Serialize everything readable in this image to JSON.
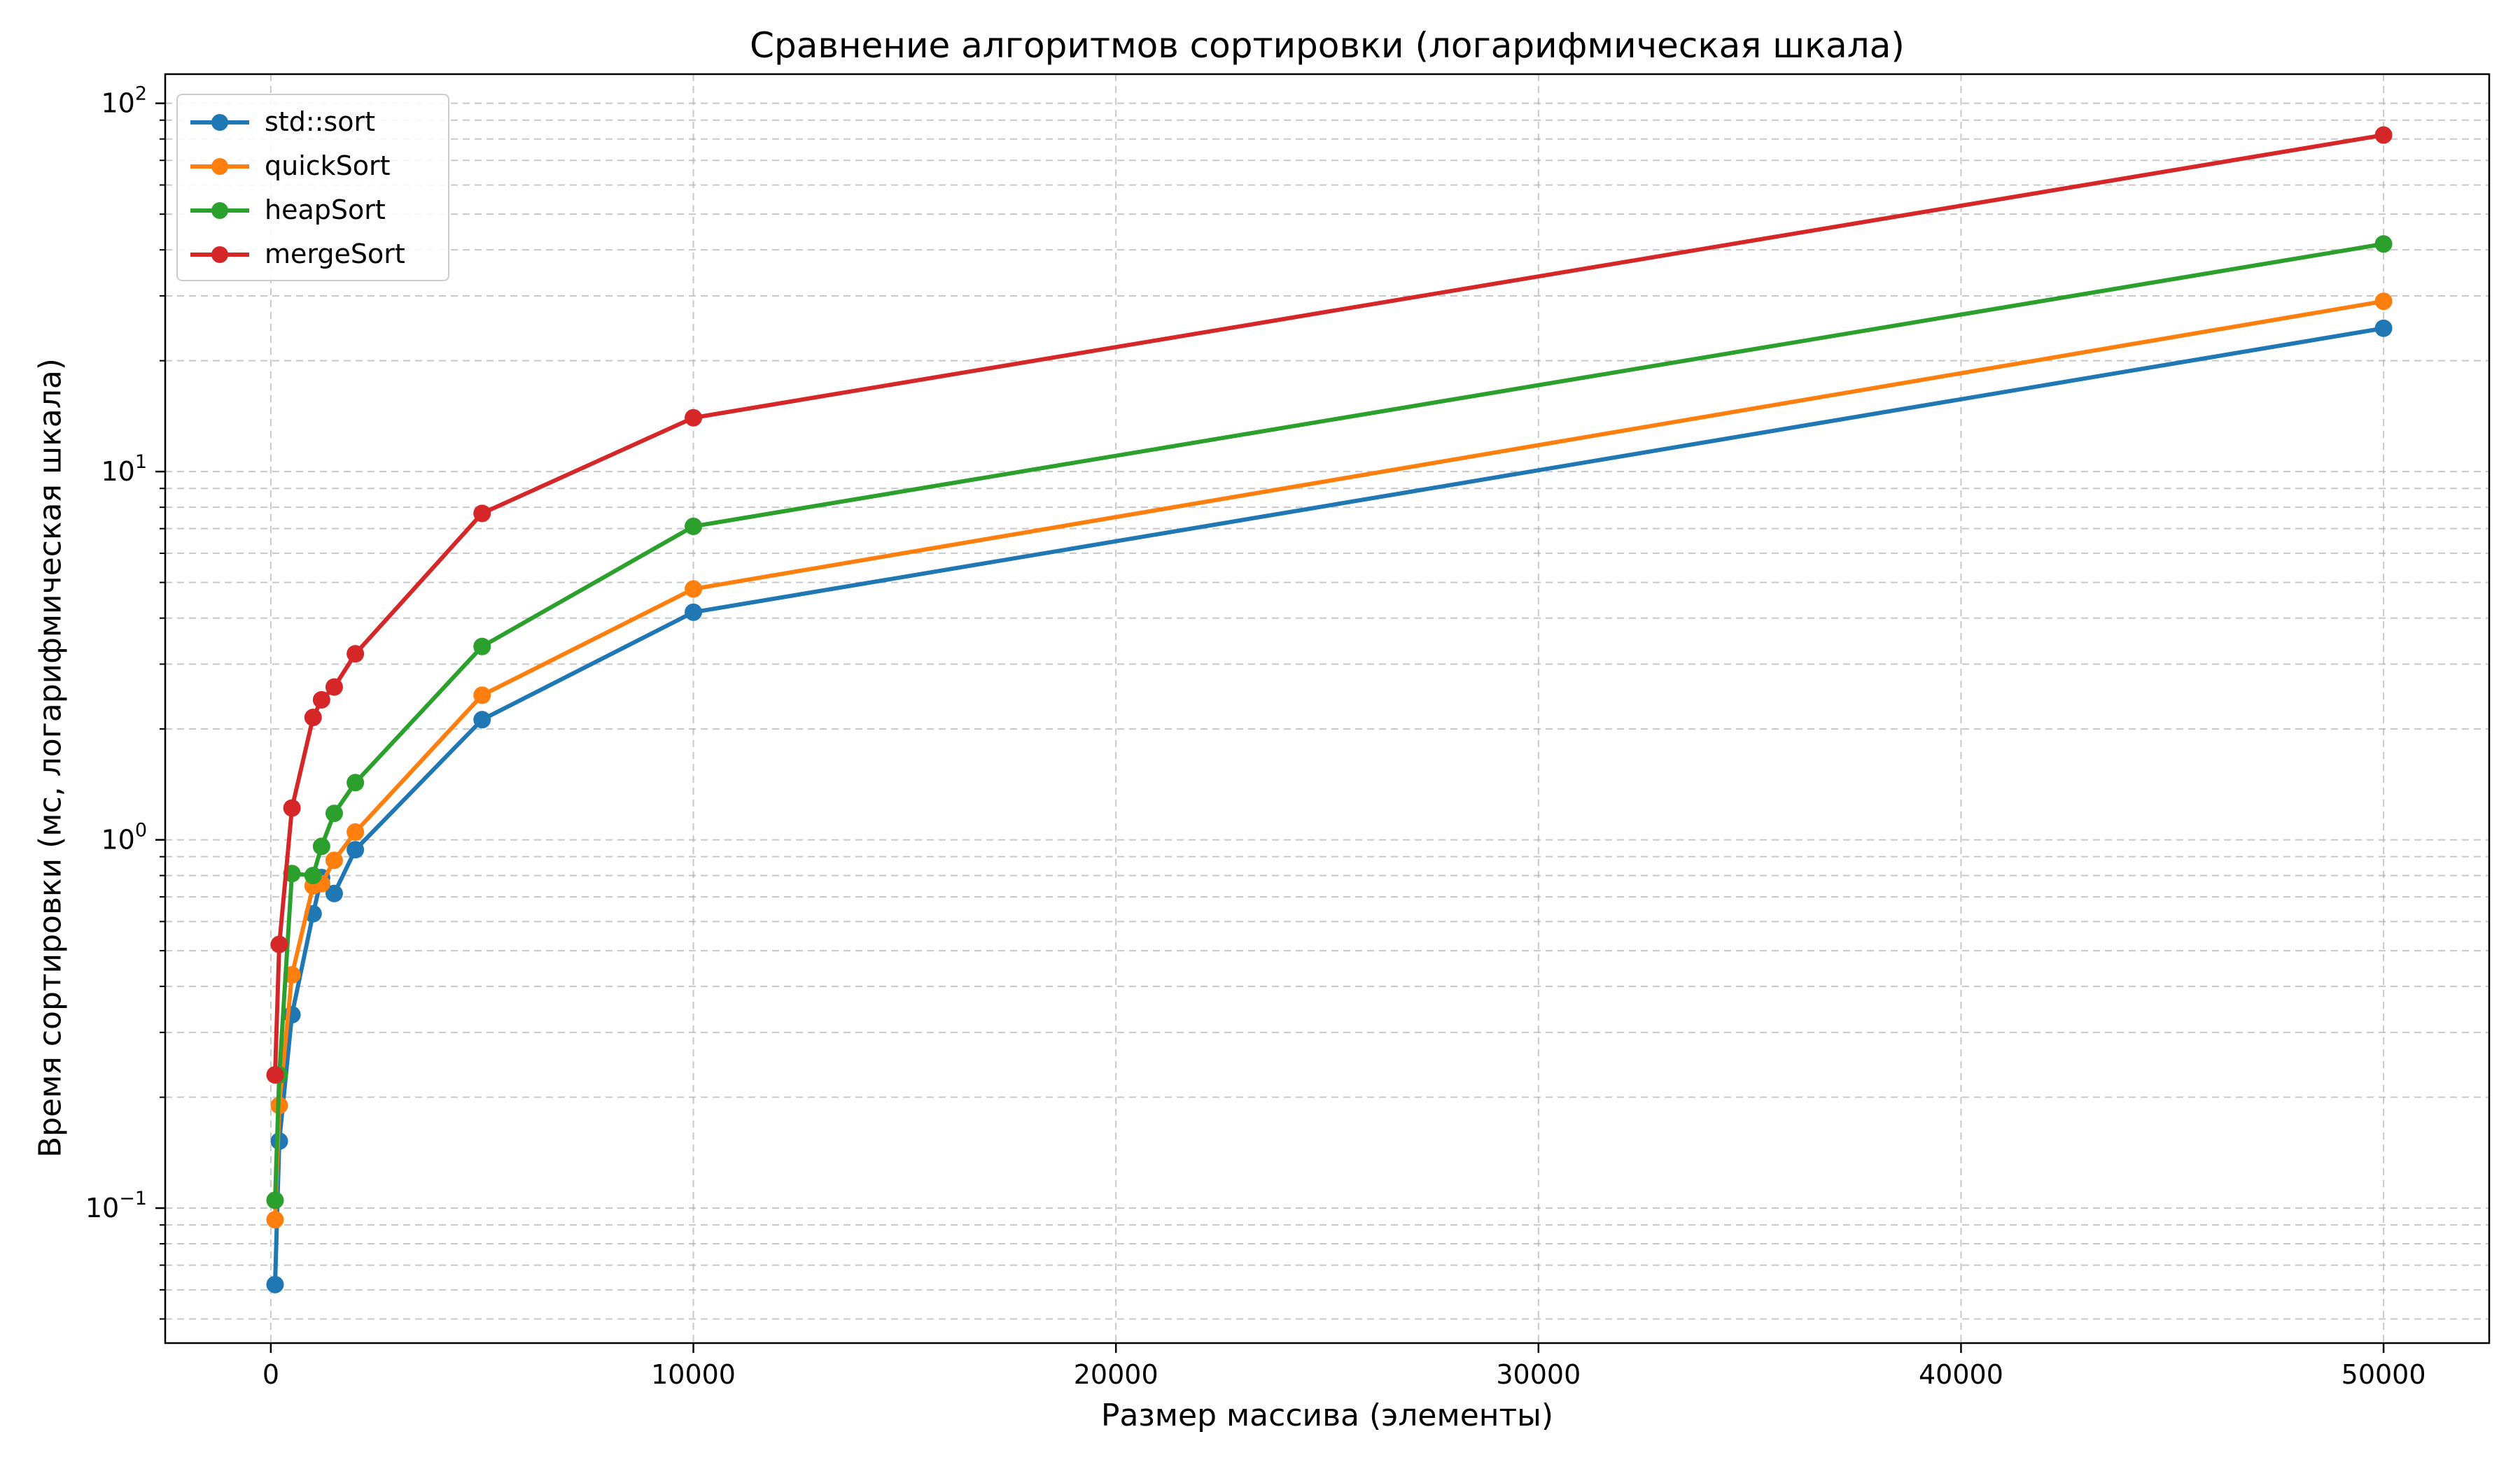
{
  "chart_data": {
    "type": "line",
    "title": "Сравнение алгоритмов сортировки (логарифмическая шкала)",
    "xlabel": "Размер массива (элементы)",
    "ylabel": "Время сортировки (мс, логарифмическая шкала)",
    "x": [
      100,
      200,
      500,
      1000,
      1200,
      1500,
      2000,
      5000,
      10000,
      50000
    ],
    "xlim": [
      -2500,
      52500
    ],
    "ylim": [
      0.043,
      120
    ],
    "yscale": "log",
    "grid": true,
    "legend_position": "top-left",
    "xticks": [
      {
        "value": 0,
        "label": "0"
      },
      {
        "value": 10000,
        "label": "10000"
      },
      {
        "value": 20000,
        "label": "20000"
      },
      {
        "value": 30000,
        "label": "30000"
      },
      {
        "value": 40000,
        "label": "40000"
      },
      {
        "value": 50000,
        "label": "50000"
      }
    ],
    "yticks": [
      {
        "value": 0.1,
        "base": "10",
        "exp": "−1"
      },
      {
        "value": 1,
        "base": "10",
        "exp": "0"
      },
      {
        "value": 10,
        "base": "10",
        "exp": "1"
      },
      {
        "value": 100,
        "base": "10",
        "exp": "2"
      }
    ],
    "series": [
      {
        "name": "std::sort",
        "color": "#1f77b4",
        "values": [
          0.062,
          0.152,
          0.335,
          0.63,
          0.79,
          0.715,
          0.94,
          2.12,
          4.15,
          24.5
        ]
      },
      {
        "name": "quickSort",
        "color": "#ff7f0e",
        "values": [
          0.093,
          0.19,
          0.43,
          0.75,
          0.76,
          0.88,
          1.05,
          2.47,
          4.8,
          29.0
        ]
      },
      {
        "name": "heapSort",
        "color": "#2ca02c",
        "values": [
          0.105,
          0.23,
          0.81,
          0.8,
          0.96,
          1.18,
          1.43,
          3.35,
          7.1,
          41.5
        ]
      },
      {
        "name": "mergeSort",
        "color": "#d62728",
        "values": [
          0.23,
          0.52,
          1.22,
          2.15,
          2.4,
          2.6,
          3.2,
          7.7,
          14.0,
          82.0
        ]
      }
    ]
  }
}
